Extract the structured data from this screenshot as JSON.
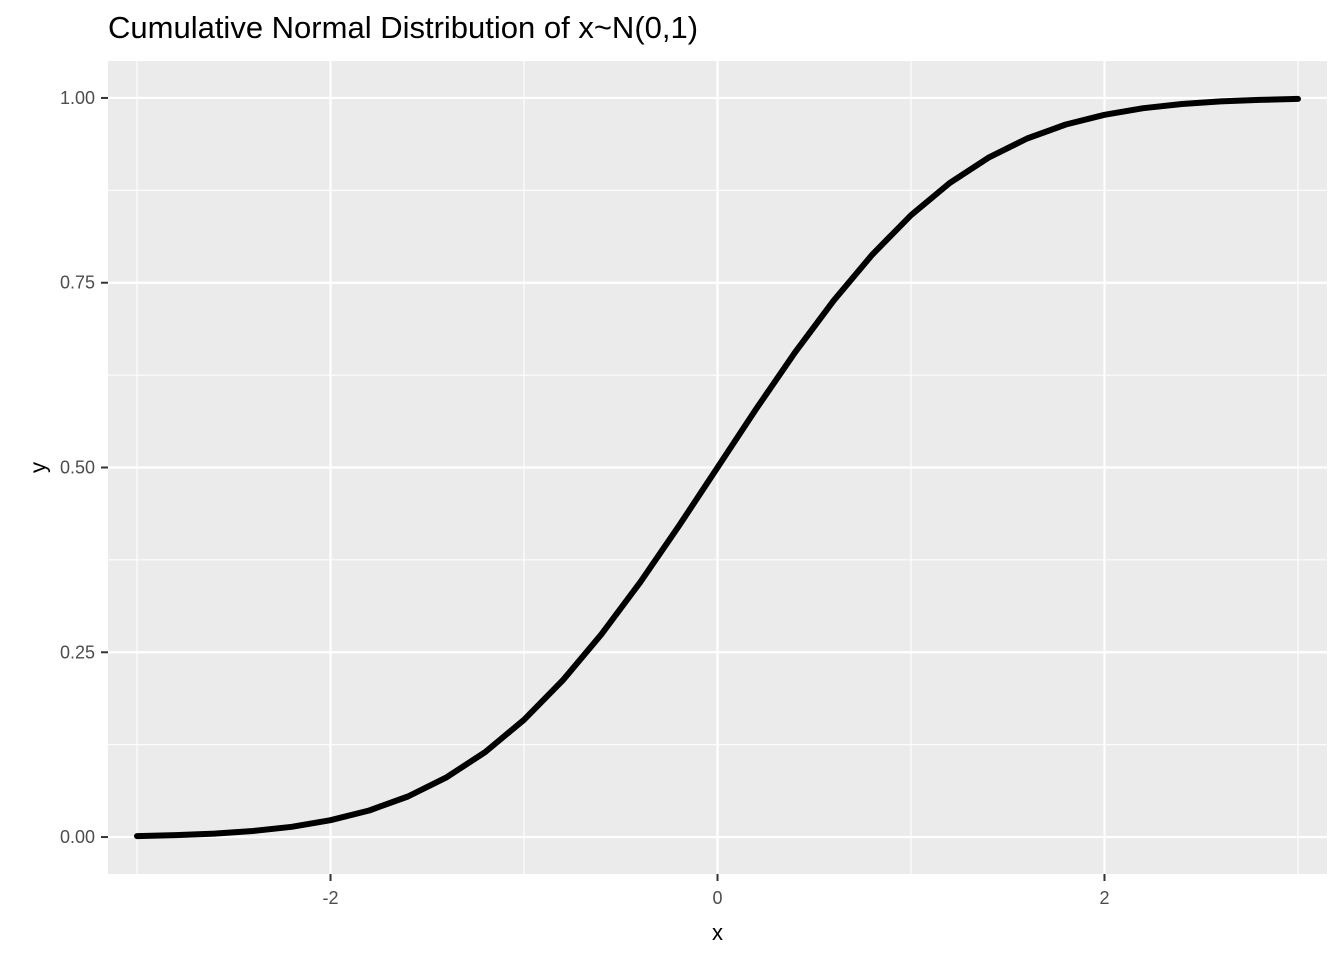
{
  "chart_data": {
    "type": "line",
    "title": "Cumulative Normal Distribution of x~N(0,1)",
    "xlabel": "x",
    "ylabel": "y",
    "xlim": [
      -3.15,
      3.15
    ],
    "ylim": [
      -0.05,
      1.05
    ],
    "x_ticks": [
      -2,
      0,
      2
    ],
    "x_tick_labels": [
      "-2",
      "0",
      "2"
    ],
    "y_ticks": [
      0,
      0.25,
      0.5,
      0.75,
      1
    ],
    "y_tick_labels": [
      "0.00",
      "0.25",
      "0.50",
      "0.75",
      "1.00"
    ],
    "grid": true,
    "legend": "none",
    "line_color": "#000000",
    "panel_color": "#ebebeb",
    "gridline_color": "#ffffff",
    "series": [
      {
        "x": [
          -3,
          -2.8,
          -2.6,
          -2.4,
          -2.2,
          -2,
          -1.8,
          -1.6,
          -1.4,
          -1.2,
          -1,
          -0.8,
          -0.6,
          -0.4,
          -0.2,
          0,
          0.2,
          0.4,
          0.6,
          0.8,
          1,
          1.2,
          1.4,
          1.6,
          1.8,
          2,
          2.2,
          2.4,
          2.6,
          2.8,
          3
        ],
        "values": [
          0.0013,
          0.0026,
          0.0047,
          0.0082,
          0.0139,
          0.0228,
          0.0359,
          0.0548,
          0.0808,
          0.1151,
          0.1587,
          0.2119,
          0.2743,
          0.3446,
          0.4207,
          0.5,
          0.5793,
          0.6554,
          0.7257,
          0.7881,
          0.8413,
          0.8849,
          0.9192,
          0.9452,
          0.9641,
          0.9772,
          0.9861,
          0.9918,
          0.9953,
          0.9974,
          0.9987
        ]
      }
    ]
  }
}
